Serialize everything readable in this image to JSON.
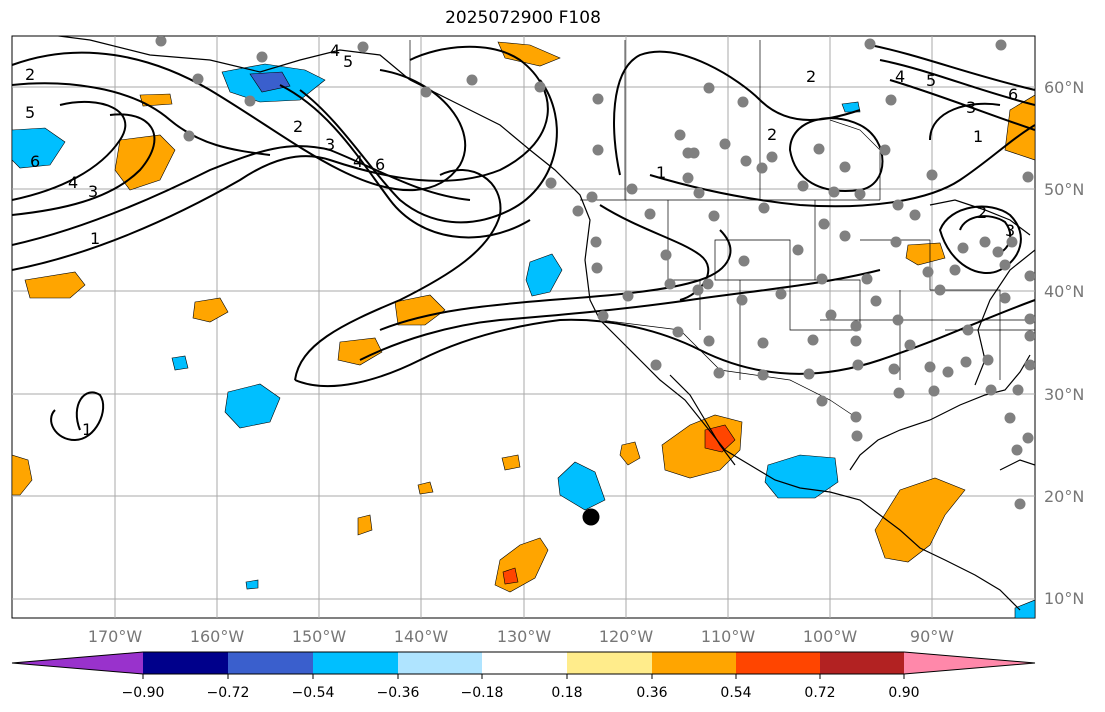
{
  "title": "2025072900 F108",
  "longitude_labels": [
    "170°W",
    "160°W",
    "150°W",
    "140°W",
    "130°W",
    "120°W",
    "110°W",
    "100°W",
    "90°W"
  ],
  "latitude_labels": [
    "10°N",
    "20°N",
    "30°N",
    "40°N",
    "50°N",
    "60°N"
  ],
  "colorbar": {
    "tick_labels": [
      "−0.90",
      "−0.72",
      "−0.54",
      "−0.36",
      "−0.18",
      "0.18",
      "0.36",
      "0.54",
      "0.72",
      "0.90"
    ],
    "colors": [
      "#9932cc",
      "#00008b",
      "#3a5fcd",
      "#00bfff",
      "#afe4ff",
      "#ffffff",
      "#ffec8b",
      "#ffa500",
      "#ff4500",
      "#b22222",
      "#ff88aa"
    ]
  },
  "contour_labels": [
    "1",
    "2",
    "3",
    "4",
    "5",
    "6"
  ],
  "colors": {
    "positive_weak": "#ffa500",
    "positive_strong": "#ff4500",
    "negative_moderate": "#00bfff",
    "negative_strong": "#3a5fcd",
    "station_dot": "#808080",
    "grid": "#aaaaaa",
    "marker": "#000000"
  }
}
